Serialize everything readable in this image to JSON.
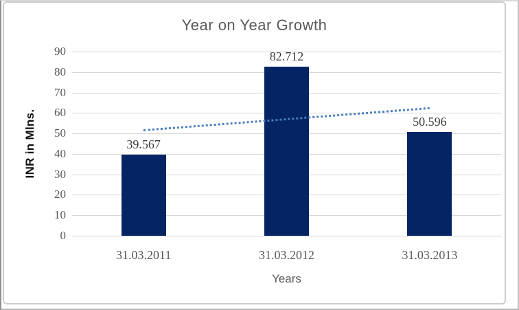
{
  "window": {
    "background": "#ffffff",
    "frame_border_color": "#cdcdcd"
  },
  "chart_data": {
    "type": "bar",
    "title": "Year on Year Growth",
    "xlabel": "Years",
    "ylabel": "INR in Mlns.",
    "categories": [
      "31.03.2011",
      "31.03.2012",
      "31.03.2013"
    ],
    "values": [
      39.567,
      82.712,
      50.596
    ],
    "data_labels": [
      "39.567",
      "82.712",
      "50.596"
    ],
    "yticks": [
      0,
      10,
      20,
      30,
      40,
      50,
      60,
      70,
      80,
      90
    ],
    "ylim": [
      0,
      90
    ],
    "grid": "horizontal-only",
    "legend": "none",
    "bar_color": "#042463",
    "label_color": "#3b3b3b",
    "axis_text_color": "#595959",
    "gridline_color": "#d6d6d6",
    "trendline": {
      "style": "dotted",
      "color": "#4a7ebb",
      "start_value": 52.1,
      "end_value": 62.9
    }
  }
}
